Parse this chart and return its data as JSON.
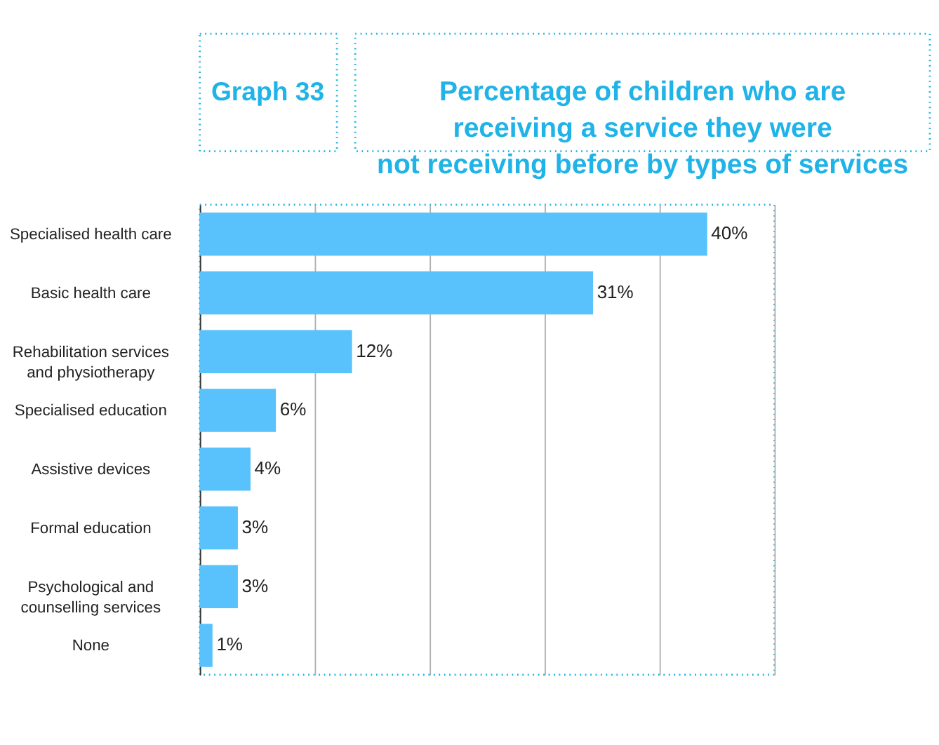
{
  "chart_data": {
    "type": "bar",
    "orientation": "horizontal",
    "title": "Percentage of children who are\nreceiving a service they were\nnot receiving before by types of services",
    "annotations": [
      "Graph 33"
    ],
    "categories": [
      "Specialised health care",
      "Basic health care",
      "Rehabilitation services\nand physiotherapy",
      "Specialised education",
      "Assistive devices",
      "Formal education",
      "Psychological and\ncounselling services",
      "None"
    ],
    "values": [
      40,
      31,
      12,
      6,
      4,
      3,
      3,
      1
    ],
    "value_labels": [
      "40%",
      "31%",
      "12%",
      "6%",
      "4%",
      "3%",
      "3%",
      "1%"
    ],
    "color": "#59c1fb",
    "xlim": [
      0,
      45.3
    ],
    "xticks": [
      {
        "value": 0,
        "label": null
      },
      {
        "value": 9.06,
        "label": null
      },
      {
        "value": 18.12,
        "label": null
      },
      {
        "value": 27.18,
        "label": null
      },
      {
        "value": 36.24,
        "label": null
      },
      {
        "value": 45.3,
        "label": null
      }
    ],
    "grid": "x",
    "tick_labels": "y"
  }
}
